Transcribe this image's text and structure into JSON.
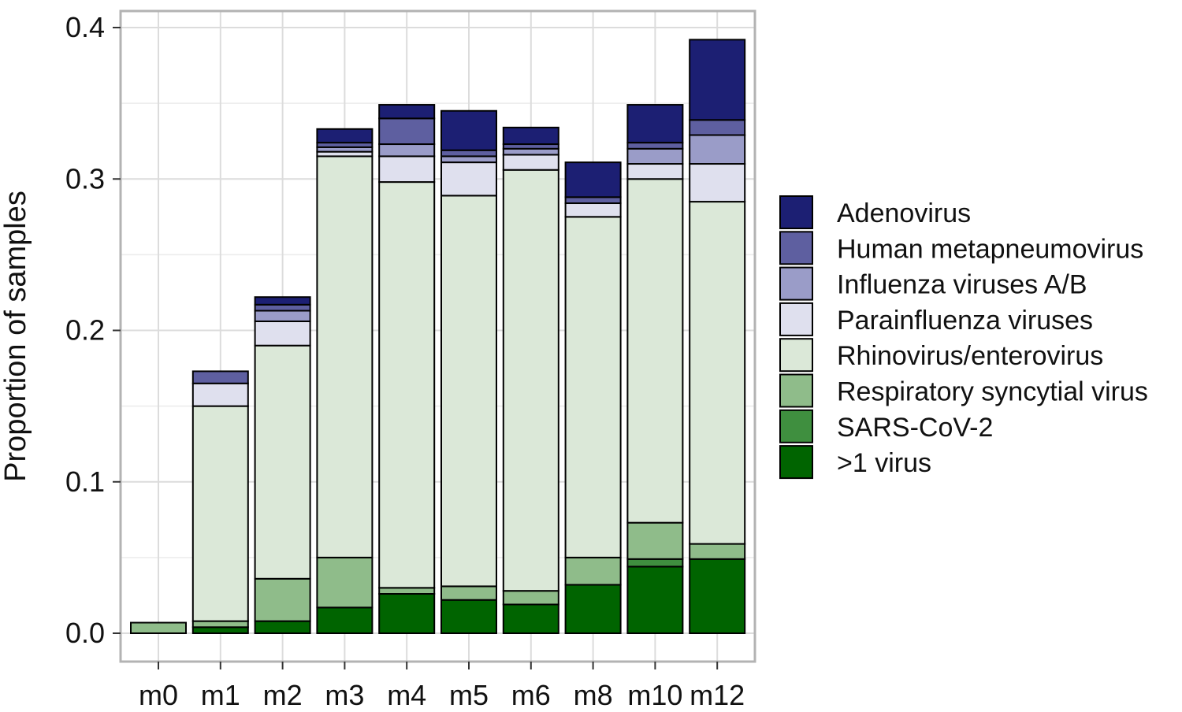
{
  "chart_data": {
    "type": "bar",
    "stacked": true,
    "title": "",
    "xlabel": "",
    "ylabel": "Proportion of samples",
    "ylim": [
      0,
      0.4
    ],
    "yticks": [
      0.0,
      0.1,
      0.2,
      0.3,
      0.4
    ],
    "ytick_labels": [
      "0.0",
      "0.1",
      "0.2",
      "0.3",
      "0.4"
    ],
    "grid": true,
    "legend_position": "right",
    "categories": [
      "m0",
      "m1",
      "m2",
      "m3",
      "m4",
      "m5",
      "m6",
      "m8",
      "m10",
      "m12"
    ],
    "series": [
      {
        "name": ">1 virus",
        "color": "#006400",
        "values": [
          0.0,
          0.004,
          0.008,
          0.017,
          0.026,
          0.022,
          0.019,
          0.032,
          0.044,
          0.049
        ]
      },
      {
        "name": "SARS-CoV-2",
        "color": "#3f8f3f",
        "values": [
          0.0,
          0.0,
          0.0,
          0.0,
          0.0,
          0.0,
          0.0,
          0.0,
          0.005,
          0.0
        ]
      },
      {
        "name": "Respiratory syncytial virus",
        "color": "#8fbc8a",
        "values": [
          0.007,
          0.004,
          0.028,
          0.033,
          0.004,
          0.009,
          0.009,
          0.018,
          0.024,
          0.01
        ]
      },
      {
        "name": "Rhinovirus/enterovirus",
        "color": "#dbe8d8",
        "values": [
          0.0,
          0.142,
          0.154,
          0.265,
          0.268,
          0.258,
          0.278,
          0.225,
          0.227,
          0.226
        ]
      },
      {
        "name": "Parainfluenza viruses",
        "color": "#dfe0ee",
        "values": [
          0.0,
          0.015,
          0.016,
          0.003,
          0.017,
          0.022,
          0.01,
          0.009,
          0.01,
          0.025
        ]
      },
      {
        "name": "Influenza viruses A/B",
        "color": "#9a9cc8",
        "values": [
          0.0,
          0.0,
          0.007,
          0.003,
          0.008,
          0.004,
          0.004,
          0.0,
          0.01,
          0.019
        ]
      },
      {
        "name": "Human metapneumovirus",
        "color": "#5e5fa0",
        "values": [
          0.0,
          0.008,
          0.004,
          0.003,
          0.017,
          0.004,
          0.003,
          0.004,
          0.004,
          0.01
        ]
      },
      {
        "name": "Adenovirus",
        "color": "#1c1f73",
        "values": [
          0.0,
          0.0,
          0.005,
          0.009,
          0.009,
          0.026,
          0.011,
          0.023,
          0.025,
          0.053
        ]
      }
    ]
  }
}
